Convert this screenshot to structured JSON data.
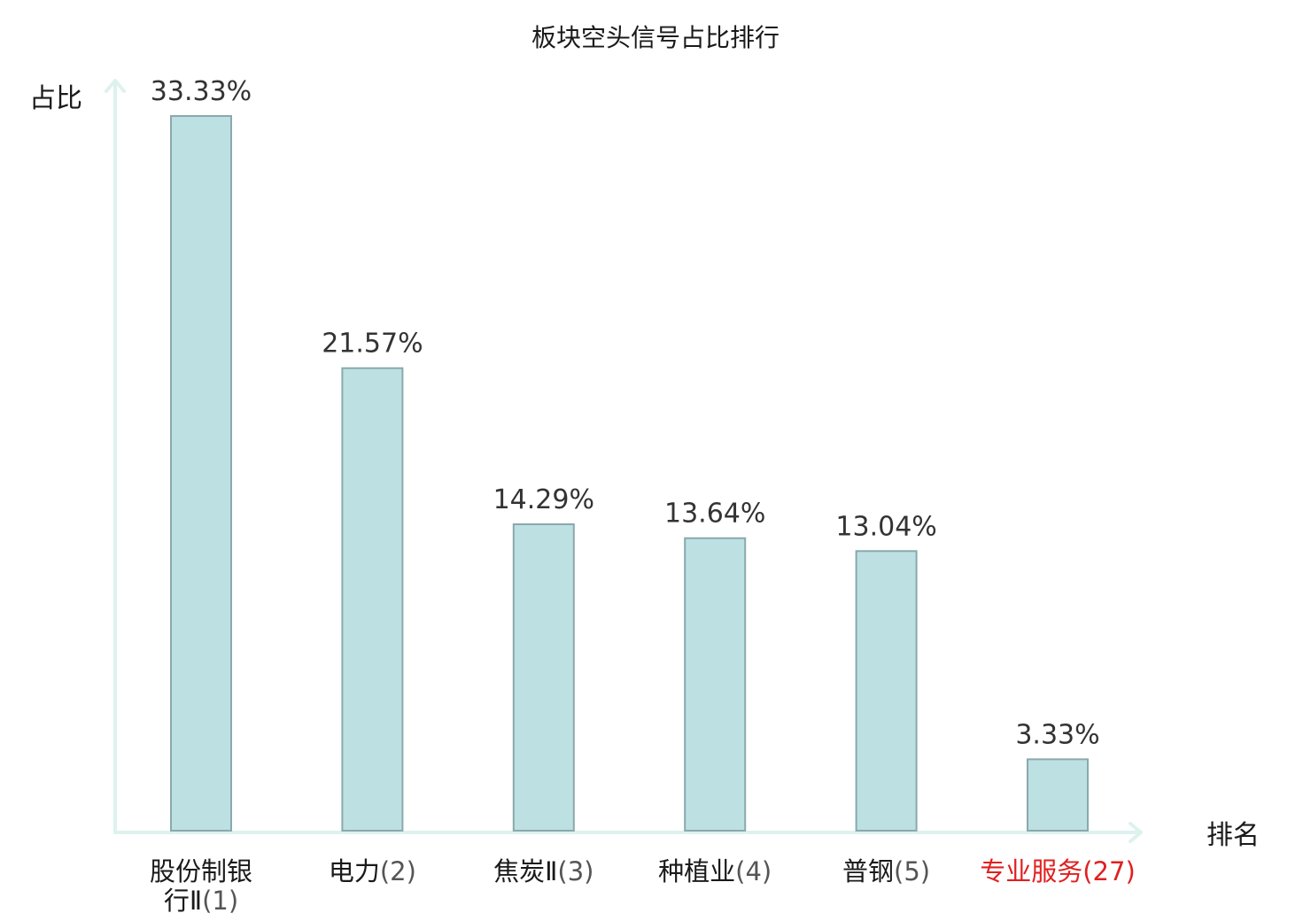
{
  "chart_data": {
    "type": "bar",
    "title": "板块空头信号占比排行",
    "ylabel": "占比",
    "xlabel": "排名",
    "categories": [
      {
        "name": "股份制银行Ⅱ",
        "rank": "(1)",
        "highlight": false
      },
      {
        "name": "电力",
        "rank": "(2)",
        "highlight": false
      },
      {
        "name": "焦炭Ⅱ",
        "rank": "(3)",
        "highlight": false
      },
      {
        "name": "种植业",
        "rank": "(4)",
        "highlight": false
      },
      {
        "name": "普钢",
        "rank": "(5)",
        "highlight": false
      },
      {
        "name": "专业服务",
        "rank": "(27)",
        "highlight": true
      }
    ],
    "values": [
      33.33,
      21.57,
      14.29,
      13.64,
      13.04,
      3.33
    ],
    "value_labels": [
      "33.33%",
      "21.57%",
      "14.29%",
      "13.64%",
      "13.04%",
      "3.33%"
    ],
    "ylim": [
      0,
      35
    ],
    "grid": false,
    "colors": {
      "bar_fill": "#bde0e2",
      "bar_stroke": "#8aa9ac",
      "axis": "#ddf2ef",
      "highlight_label": "#e02020"
    }
  }
}
